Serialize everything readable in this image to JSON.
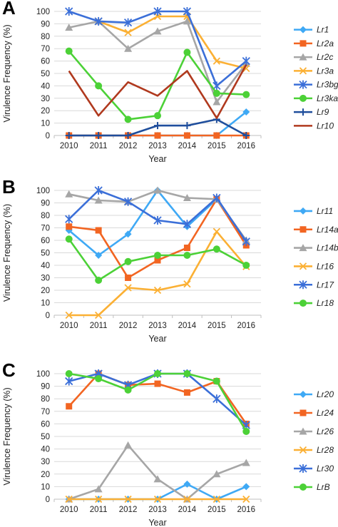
{
  "chart_data": [
    {
      "type": "line",
      "panel": "A",
      "xlabel": "Year",
      "ylabel": "Virulence Frequency (%)",
      "ylim": [
        0,
        100
      ],
      "yticks": [
        0,
        10,
        20,
        30,
        40,
        50,
        60,
        70,
        80,
        90,
        100
      ],
      "categories": [
        "2010",
        "2011",
        "2012",
        "2013",
        "2014",
        "2015",
        "2016"
      ],
      "grid": "horizontal",
      "legend_position": "right",
      "series": [
        {
          "name": "Lr1",
          "color": "#3fa9f5",
          "marker": "diamond",
          "values": [
            0,
            0,
            0,
            0,
            0,
            0,
            19
          ]
        },
        {
          "name": "Lr2a",
          "color": "#f26522",
          "marker": "square",
          "values": [
            0,
            0,
            0,
            0,
            0,
            0,
            0
          ]
        },
        {
          "name": "Lr2c",
          "color": "#a6a6a6",
          "marker": "triangle",
          "values": [
            87,
            92,
            70,
            84,
            92,
            27,
            58
          ]
        },
        {
          "name": "Lr3a",
          "color": "#fbb034",
          "marker": "x",
          "values": [
            null,
            92,
            83,
            96,
            96,
            60,
            54
          ]
        },
        {
          "name": "Lr3bg",
          "color": "#3b6fd8",
          "marker": "star",
          "values": [
            100,
            92,
            91,
            100,
            100,
            40,
            60
          ]
        },
        {
          "name": "Lr3ka",
          "color": "#4cd137",
          "marker": "circle",
          "values": [
            68,
            40,
            13,
            16,
            67,
            34,
            33
          ]
        },
        {
          "name": "Lr9",
          "color": "#1f4e9c",
          "marker": "plus",
          "values": [
            0,
            0,
            0,
            8,
            8,
            13,
            0
          ]
        },
        {
          "name": "Lr10",
          "color": "#b0391e",
          "marker": "none",
          "values": [
            52,
            16,
            43,
            32,
            52,
            14,
            57
          ]
        }
      ]
    },
    {
      "type": "line",
      "panel": "B",
      "xlabel": "Year",
      "ylabel": "Virulence Frequency (%)",
      "ylim": [
        0,
        100
      ],
      "yticks": [
        0,
        10,
        20,
        30,
        40,
        50,
        60,
        70,
        80,
        90,
        100
      ],
      "categories": [
        "2010",
        "2011",
        "2012",
        "2013",
        "2014",
        "2015",
        "2016"
      ],
      "grid": "horizontal",
      "legend_position": "right",
      "series": [
        {
          "name": "Lr11",
          "color": "#3fa9f5",
          "marker": "diamond",
          "values": [
            68,
            48,
            65,
            100,
            71,
            93,
            57
          ]
        },
        {
          "name": "Lr14a",
          "color": "#f26522",
          "marker": "square",
          "values": [
            71,
            68,
            30,
            44,
            54,
            93,
            56
          ]
        },
        {
          "name": "Lr14b",
          "color": "#a6a6a6",
          "marker": "triangle",
          "values": [
            97,
            92,
            91,
            100,
            94,
            93,
            60
          ]
        },
        {
          "name": "Lr16",
          "color": "#fbb034",
          "marker": "x",
          "values": [
            0,
            0,
            22,
            20,
            25,
            67,
            39
          ]
        },
        {
          "name": "Lr17",
          "color": "#3b6fd8",
          "marker": "star",
          "values": [
            77,
            100,
            91,
            76,
            73,
            94,
            59
          ]
        },
        {
          "name": "Lr18",
          "color": "#4cd137",
          "marker": "circle",
          "values": [
            61,
            28,
            43,
            48,
            48,
            53,
            40
          ]
        }
      ]
    },
    {
      "type": "line",
      "panel": "C",
      "xlabel": "Year",
      "ylabel": "Virulence Frequency (%)",
      "ylim": [
        0,
        100
      ],
      "yticks": [
        0,
        10,
        20,
        30,
        40,
        50,
        60,
        70,
        80,
        90,
        100
      ],
      "categories": [
        "2010",
        "2011",
        "2012",
        "2013",
        "2014",
        "2015",
        "2016"
      ],
      "grid": "horizontal",
      "legend_position": "right",
      "series": [
        {
          "name": "Lr20",
          "color": "#3fa9f5",
          "marker": "diamond",
          "values": [
            0,
            0,
            0,
            0,
            12,
            0,
            10
          ]
        },
        {
          "name": "Lr24",
          "color": "#f26522",
          "marker": "square",
          "values": [
            74,
            100,
            91,
            92,
            85,
            94,
            60
          ]
        },
        {
          "name": "Lr26",
          "color": "#a6a6a6",
          "marker": "triangle",
          "values": [
            0,
            8,
            43,
            16,
            0,
            20,
            29
          ]
        },
        {
          "name": "Lr28",
          "color": "#fbb034",
          "marker": "x",
          "values": [
            0,
            0,
            0,
            0,
            0,
            0,
            0
          ]
        },
        {
          "name": "Lr30",
          "color": "#3b6fd8",
          "marker": "star",
          "values": [
            94,
            100,
            91,
            100,
            100,
            80,
            59
          ]
        },
        {
          "name": "LrB",
          "color": "#4cd137",
          "marker": "circle",
          "values": [
            100,
            96,
            87,
            100,
            100,
            94,
            54
          ]
        }
      ]
    }
  ]
}
